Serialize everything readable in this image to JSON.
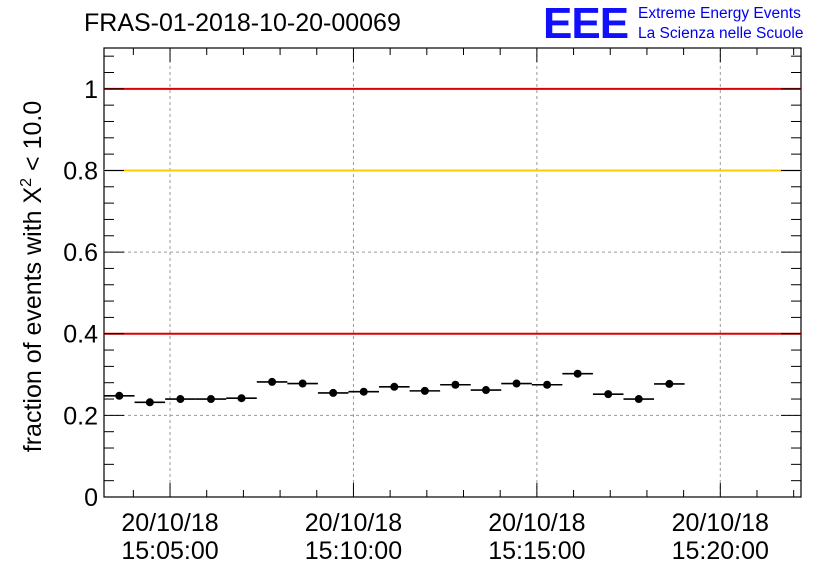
{
  "header": {
    "run_id": "FRAS-01-2018-10-20-00069"
  },
  "logo": {
    "mark": "EEE",
    "line1": "Extreme Energy Events",
    "line2": "La Scienza nelle Scuole",
    "color": "#1010ff"
  },
  "chart_data": {
    "type": "scatter",
    "ylabel_prefix": "fraction of events with X",
    "ylabel_sup": "2",
    "ylabel_suffix": " < 10.0",
    "xlabel": "",
    "ylim": [
      0,
      1.1
    ],
    "yticks": [
      0,
      0.2,
      0.4,
      0.6,
      0.8,
      1
    ],
    "ytick_labels": [
      "0",
      "0.2",
      "0.4",
      "0.6",
      "0.8",
      "1"
    ],
    "xlim_minutes": [
      13.2,
      32.2
    ],
    "xticks_minutes": [
      15,
      20,
      25,
      30
    ],
    "xtick_labels": [
      [
        "20/10/18",
        "15:05:00"
      ],
      [
        "20/10/18",
        "15:10:00"
      ],
      [
        "20/10/18",
        "15:15:00"
      ],
      [
        "20/10/18",
        "15:20:00"
      ]
    ],
    "x_start": "20/10/18 15:03:12",
    "bin_width_minutes": 0.833,
    "grid": true,
    "reference_lines": [
      {
        "y": 1.0,
        "color": "#dd0000"
      },
      {
        "y": 0.8,
        "color": "#ffcc00"
      },
      {
        "y": 0.4,
        "color": "#dd0000"
      }
    ],
    "series": [
      {
        "marker_color": "#000000",
        "values": [
          0.248,
          0.232,
          0.24,
          0.24,
          0.242,
          0.282,
          0.278,
          0.255,
          0.258,
          0.27,
          0.26,
          0.275,
          0.262,
          0.278,
          0.275,
          0.302,
          0.252,
          0.24,
          0.277
        ]
      }
    ]
  }
}
